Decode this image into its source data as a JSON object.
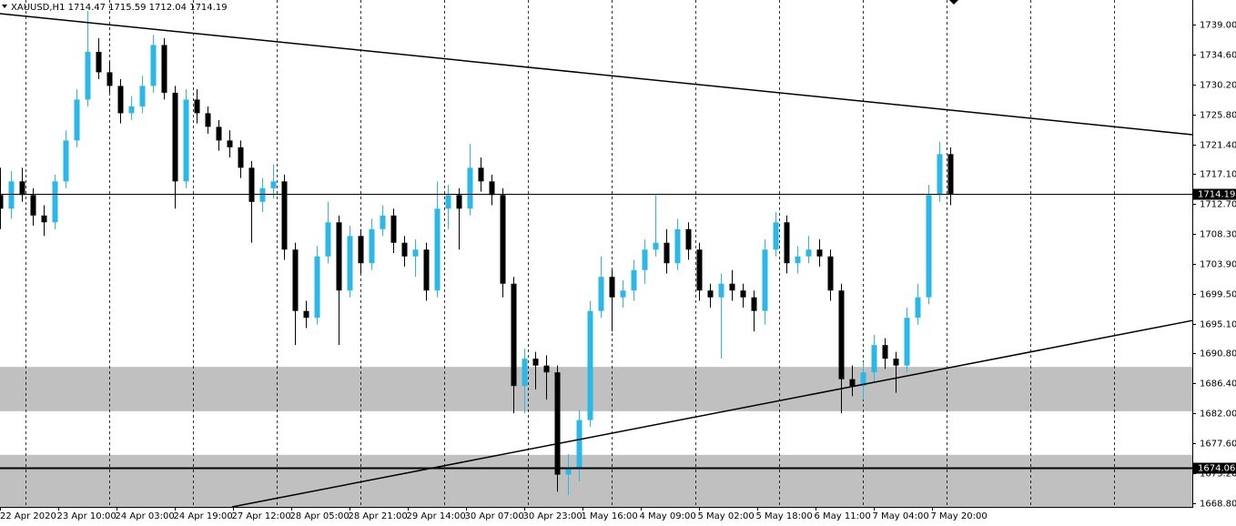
{
  "chart_data": {
    "type": "candlestick",
    "title": "XAUUSD,H1  1714.47 1715.59 1712.04 1714.19",
    "up_color": "#2ab8e8",
    "down_color": "#000000",
    "xlim": [
      0,
      327.5
    ],
    "ylim": [
      1668.27,
      1742.6
    ],
    "xticks": [
      {
        "value": 0,
        "label": "22 Apr 2020"
      },
      {
        "value": 16,
        "label": "23 Apr 10:00"
      },
      {
        "value": 32,
        "label": "24 Apr 03:00"
      },
      {
        "value": 48,
        "label": "24 Apr 19:00"
      },
      {
        "value": 64,
        "label": "27 Apr 12:00"
      },
      {
        "value": 80,
        "label": "28 Apr 05:00"
      },
      {
        "value": 96,
        "label": "28 Apr 21:00"
      },
      {
        "value": 112,
        "label": "29 Apr 14:00"
      },
      {
        "value": 128,
        "label": "30 Apr 07:00"
      },
      {
        "value": 144,
        "label": "30 Apr 23:00"
      },
      {
        "value": 160,
        "label": "1 May 16:00"
      },
      {
        "value": 176,
        "label": "4 May 09:00"
      },
      {
        "value": 192,
        "label": "5 May 02:00"
      },
      {
        "value": 208,
        "label": "5 May 18:00"
      },
      {
        "value": 224,
        "label": "6 May 11:00"
      },
      {
        "value": 240,
        "label": "7 May 04:00"
      },
      {
        "value": 256,
        "label": "7 May 20:00"
      }
    ],
    "yticks": [
      {
        "value": 1739,
        "label": "1739.00"
      },
      {
        "value": 1734.6,
        "label": "1734.60"
      },
      {
        "value": 1730.2,
        "label": "1730.20"
      },
      {
        "value": 1725.8,
        "label": "1725.80"
      },
      {
        "value": 1721.4,
        "label": "1721.40"
      },
      {
        "value": 1717.1,
        "label": "1717.10"
      },
      {
        "value": 1712.7,
        "label": "1712.70"
      },
      {
        "value": 1708.3,
        "label": "1708.30"
      },
      {
        "value": 1703.9,
        "label": "1703.90"
      },
      {
        "value": 1699.5,
        "label": "1699.50"
      },
      {
        "value": 1695.1,
        "label": "1695.10"
      },
      {
        "value": 1690.8,
        "label": "1690.80"
      },
      {
        "value": 1686.4,
        "label": "1686.40"
      },
      {
        "value": 1682,
        "label": "1682.00"
      },
      {
        "value": 1677.6,
        "label": "1677.60"
      },
      {
        "value": 1673.2,
        "label": "1673.20"
      },
      {
        "value": 1668.8,
        "label": "1668.80"
      }
    ],
    "zones": [
      [
        1682.3,
        1688.8
      ],
      [
        1668.27,
        1675.9
      ]
    ],
    "trendlines": [
      {
        "x": [
          0,
          327.5
        ],
        "y": [
          1740.6,
          1722.85
        ]
      },
      {
        "x": [
          63.75,
          327.5
        ],
        "y": [
          1668.27,
          1695.6
        ]
      }
    ],
    "hlines": [
      1714.19,
      1674.06
    ],
    "x": [
      0,
      3,
      6,
      9,
      12,
      15,
      18,
      21,
      24,
      27,
      30,
      33,
      36,
      39,
      42,
      45,
      48,
      51,
      54,
      57,
      60,
      63,
      66,
      69,
      72,
      75,
      78,
      81,
      84,
      87,
      90,
      93,
      96,
      99,
      102,
      105,
      108,
      111,
      114,
      117,
      120,
      123,
      126,
      129,
      132,
      135,
      138,
      141,
      144,
      147,
      150,
      153,
      156,
      159,
      162,
      165,
      168,
      171,
      174,
      177,
      180,
      183,
      186,
      189,
      192,
      195,
      198,
      201,
      204,
      207,
      210,
      213,
      216,
      219,
      222,
      225,
      228,
      231,
      234,
      237,
      240,
      243,
      246,
      249,
      252,
      255,
      258,
      261
    ],
    "ohlc": [
      [
        1714,
        1718,
        1709,
        1712
      ],
      [
        1712,
        1717.5,
        1710.5,
        1716
      ],
      [
        1716,
        1718,
        1713,
        1714
      ],
      [
        1714,
        1715,
        1709.5,
        1711
      ],
      [
        1711,
        1712.5,
        1708,
        1710
      ],
      [
        1710,
        1717,
        1709,
        1716
      ],
      [
        1716,
        1723.5,
        1715,
        1722
      ],
      [
        1722,
        1729.5,
        1721,
        1728
      ],
      [
        1728,
        1741,
        1727,
        1735
      ],
      [
        1735,
        1737,
        1731,
        1732
      ],
      [
        1732,
        1733.5,
        1729,
        1730
      ],
      [
        1730,
        1731,
        1724.5,
        1726
      ],
      [
        1726,
        1728.5,
        1725,
        1727
      ],
      [
        1727,
        1731.5,
        1726,
        1730
      ],
      [
        1730,
        1737.5,
        1729,
        1736
      ],
      [
        1736,
        1737,
        1728,
        1729
      ],
      [
        1729,
        1730,
        1712,
        1716
      ],
      [
        1716,
        1729.5,
        1715,
        1728
      ],
      [
        1728,
        1729.5,
        1724.5,
        1726
      ],
      [
        1726,
        1727,
        1723,
        1724
      ],
      [
        1724,
        1725,
        1720.5,
        1722
      ],
      [
        1722,
        1723.5,
        1719.5,
        1721
      ],
      [
        1721,
        1722,
        1716.5,
        1718
      ],
      [
        1718,
        1719,
        1707,
        1713
      ],
      [
        1713,
        1716.5,
        1711.5,
        1715
      ],
      [
        1715,
        1718.5,
        1713.5,
        1716
      ],
      [
        1716,
        1717,
        1704.5,
        1706
      ],
      [
        1706,
        1707,
        1692,
        1697
      ],
      [
        1697,
        1698.5,
        1694.5,
        1696
      ],
      [
        1696,
        1706.5,
        1695,
        1705
      ],
      [
        1705,
        1713,
        1704,
        1710
      ],
      [
        1710,
        1711,
        1692,
        1700
      ],
      [
        1700,
        1709.5,
        1699,
        1708
      ],
      [
        1708,
        1709,
        1702.5,
        1704
      ],
      [
        1704,
        1710.5,
        1703,
        1709
      ],
      [
        1709,
        1712.5,
        1708,
        1711
      ],
      [
        1711,
        1712,
        1705.5,
        1707
      ],
      [
        1707,
        1708,
        1703.5,
        1705
      ],
      [
        1705,
        1707.5,
        1702,
        1706
      ],
      [
        1706,
        1707,
        1698.5,
        1700
      ],
      [
        1700,
        1716,
        1699,
        1712
      ],
      [
        1712,
        1715.5,
        1709,
        1714
      ],
      [
        1714,
        1715,
        1706,
        1712
      ],
      [
        1712,
        1721.5,
        1711,
        1718
      ],
      [
        1718,
        1719.5,
        1714.5,
        1716
      ],
      [
        1716,
        1717,
        1712.5,
        1714
      ],
      [
        1714,
        1715,
        1699,
        1701
      ],
      [
        1701,
        1702,
        1682,
        1686
      ],
      [
        1686,
        1691.5,
        1682,
        1690
      ],
      [
        1690,
        1691,
        1685.5,
        1689
      ],
      [
        1689,
        1690.5,
        1684,
        1688
      ],
      [
        1688,
        1689,
        1670.5,
        1673
      ],
      [
        1673,
        1676,
        1670,
        1674
      ],
      [
        1674,
        1682.5,
        1672,
        1681
      ],
      [
        1681,
        1698.5,
        1680,
        1697
      ],
      [
        1697,
        1705,
        1696,
        1702
      ],
      [
        1702,
        1703,
        1694,
        1699
      ],
      [
        1699,
        1701.5,
        1697.5,
        1700
      ],
      [
        1700,
        1704.5,
        1698.5,
        1703
      ],
      [
        1703,
        1707.5,
        1701,
        1706
      ],
      [
        1706,
        1714,
        1705,
        1707
      ],
      [
        1707,
        1709,
        1702.5,
        1704
      ],
      [
        1704,
        1710.5,
        1703,
        1709
      ],
      [
        1709,
        1710,
        1704.5,
        1706
      ],
      [
        1706,
        1707,
        1698.5,
        1700
      ],
      [
        1700,
        1701,
        1697.5,
        1699
      ],
      [
        1699,
        1702.5,
        1690,
        1701
      ],
      [
        1701,
        1703,
        1698.5,
        1700
      ],
      [
        1700,
        1701,
        1697.5,
        1699
      ],
      [
        1699,
        1700,
        1694,
        1697
      ],
      [
        1697,
        1707.5,
        1695,
        1706
      ],
      [
        1706,
        1711.5,
        1705,
        1710
      ],
      [
        1710,
        1711,
        1702.5,
        1704
      ],
      [
        1704,
        1706.5,
        1702.5,
        1705
      ],
      [
        1705,
        1708,
        1704,
        1706
      ],
      [
        1706,
        1707.5,
        1703.5,
        1705
      ],
      [
        1705,
        1706,
        1698.5,
        1700
      ],
      [
        1700,
        1701,
        1682,
        1687
      ],
      [
        1687,
        1689,
        1684.5,
        1686
      ],
      [
        1686,
        1689.5,
        1684,
        1688
      ],
      [
        1688,
        1693.5,
        1686.5,
        1692
      ],
      [
        1692,
        1693,
        1688.5,
        1690
      ],
      [
        1690,
        1691,
        1685,
        1689
      ],
      [
        1689,
        1697.5,
        1688,
        1696
      ],
      [
        1696,
        1701,
        1695,
        1699
      ],
      [
        1699,
        1715.5,
        1698,
        1714
      ],
      [
        1714,
        1721.8,
        1713,
        1720
      ],
      [
        1720,
        1721,
        1712.5,
        1714.19
      ]
    ]
  }
}
